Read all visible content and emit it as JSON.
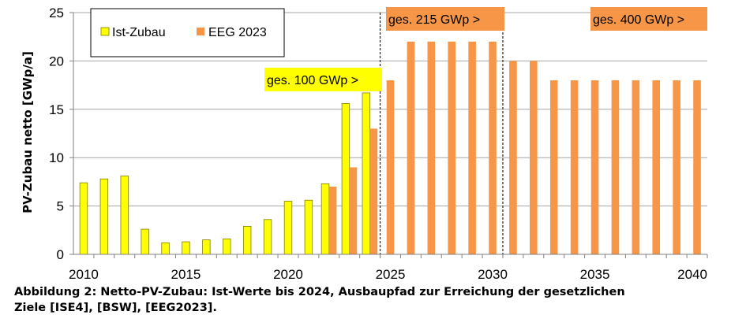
{
  "chart_data": {
    "type": "bar",
    "title": "",
    "ylabel": "PV-Zubau netto [GWp/a]",
    "xlabel": "",
    "ylim": [
      0,
      25
    ],
    "xlim": [
      2009.5,
      2040.5
    ],
    "yticks": [
      0,
      5,
      10,
      15,
      20,
      25
    ],
    "xticks": [
      2010,
      2015,
      2020,
      2025,
      2030,
      2035,
      2040
    ],
    "grid": true,
    "legend_position": "top-left",
    "series": [
      {
        "name": "Ist-Zubau",
        "color": "#FFFF00",
        "x": [
          2010,
          2011,
          2012,
          2013,
          2014,
          2015,
          2016,
          2017,
          2018,
          2019,
          2020,
          2021,
          2022,
          2023,
          2024
        ],
        "values": [
          7.4,
          7.8,
          8.1,
          2.6,
          1.2,
          1.3,
          1.5,
          1.6,
          2.9,
          3.6,
          5.5,
          5.6,
          7.3,
          15.6,
          16.7
        ]
      },
      {
        "name": "EEG 2023",
        "color": "#F79646",
        "x": [
          2022,
          2023,
          2024,
          2025,
          2026,
          2027,
          2028,
          2029,
          2030,
          2031,
          2032,
          2033,
          2034,
          2035,
          2036,
          2037,
          2038,
          2039,
          2040
        ],
        "values": [
          7,
          9,
          13,
          18,
          22,
          22,
          22,
          22,
          22,
          20,
          20,
          18,
          18,
          18,
          18,
          18,
          18,
          18,
          18
        ]
      }
    ],
    "annotations": [
      {
        "id": "ann100",
        "text": "ges. 100 GWp  >",
        "color": "#FFFF00"
      },
      {
        "id": "ann215",
        "text": "ges. 215 GWp  >",
        "color": "#F79646"
      },
      {
        "id": "ann400",
        "text": "ges. 400 GWp  >",
        "color": "#F79646"
      }
    ],
    "dividers": [
      2024.5,
      2030.5
    ]
  },
  "caption": {
    "line1": "Abbildung 2: Netto-PV-Zubau: Ist-Werte bis 2024, Ausbaupfad zur Erreichung der gesetzlichen",
    "line2": "Ziele [ISE4], [BSW], [EEG2023]."
  }
}
